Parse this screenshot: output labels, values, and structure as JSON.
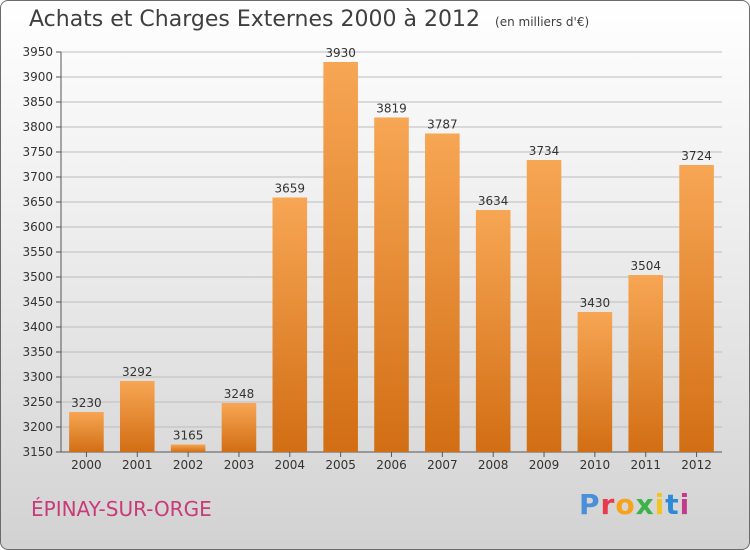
{
  "title": "Achats et Charges Externes 2000 à 2012",
  "unit": "(en milliers d'€)",
  "commune": "ÉPINAY-SUR-ORGE",
  "brand": "Proxiti",
  "colors": {
    "bar_top": "#f7a654",
    "bar_bottom": "#d26e14",
    "label": "#333333",
    "grid": "#bdbdbd"
  },
  "chart_data": {
    "type": "bar",
    "title": "Achats et Charges Externes 2000 à 2012",
    "subtitle": "(en milliers d'€)",
    "categories": [
      "2000",
      "2001",
      "2002",
      "2003",
      "2004",
      "2005",
      "2006",
      "2007",
      "2008",
      "2009",
      "2010",
      "2011",
      "2012"
    ],
    "values": [
      3230,
      3292,
      3165,
      3248,
      3659,
      3930,
      3819,
      3787,
      3634,
      3734,
      3430,
      3504,
      3724
    ],
    "ylim": [
      3150,
      3950
    ],
    "yticks": [
      3150,
      3200,
      3250,
      3300,
      3350,
      3400,
      3450,
      3500,
      3550,
      3600,
      3650,
      3700,
      3750,
      3800,
      3850,
      3900,
      3950
    ],
    "grid": true,
    "data_labels": true
  }
}
